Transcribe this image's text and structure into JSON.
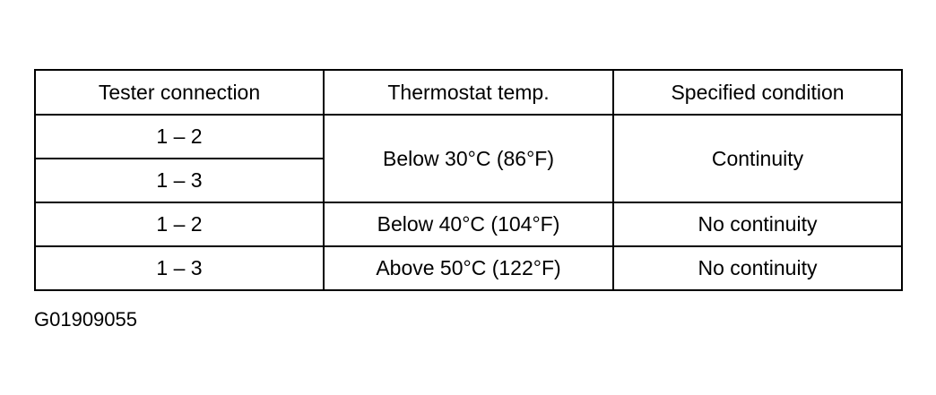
{
  "table": {
    "header": [
      "Tester connection",
      "Thermostat temp.",
      "Specified condition"
    ],
    "rows": [
      [
        "1 – 2",
        "Below 30°C (86°F)",
        "Continuity"
      ],
      [
        "1 – 3"
      ],
      [
        "1 – 2",
        "Below 40°C (104°F)",
        "No continuity"
      ],
      [
        "1 – 3",
        "Above 50°C (122°F)",
        "No continuity"
      ]
    ]
  },
  "figure_id": "G01909055"
}
